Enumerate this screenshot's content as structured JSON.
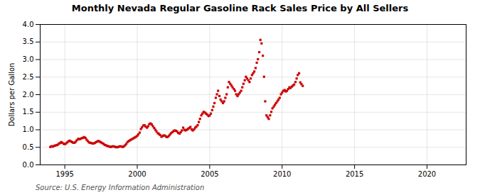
{
  "chart_data": {
    "type": "scatter",
    "title": "Monthly Nevada Regular Gasoline Rack Sales Price by All Sellers",
    "ylabel": "Dollars per Gallon",
    "annotations": [
      "Source: U.S. Energy Information Administration"
    ],
    "color": "#cc0000",
    "marker": "square",
    "grid": true,
    "xlim": [
      1993.3,
      2022.7
    ],
    "xticks": [
      1995,
      2000,
      2005,
      2010,
      2015,
      2020
    ],
    "ylim": [
      0.0,
      4.0
    ],
    "yticks": [
      {
        "value": 0.0,
        "label": "0.0"
      },
      0.5,
      {
        "value": 1.0,
        "label": "1.0"
      },
      1.5,
      {
        "value": 2.0,
        "label": "2.0"
      },
      2.5,
      {
        "value": 3.0,
        "label": "3.0"
      },
      3.5,
      {
        "value": 4.0,
        "label": "4.0"
      }
    ],
    "x": [
      1994.0,
      1994.08,
      1994.17,
      1994.25,
      1994.33,
      1994.42,
      1994.5,
      1994.58,
      1994.67,
      1994.75,
      1994.83,
      1994.92,
      1995.0,
      1995.08,
      1995.17,
      1995.25,
      1995.33,
      1995.42,
      1995.5,
      1995.58,
      1995.67,
      1995.75,
      1995.83,
      1995.92,
      1996.0,
      1996.08,
      1996.17,
      1996.25,
      1996.33,
      1996.42,
      1996.5,
      1996.58,
      1996.67,
      1996.75,
      1996.83,
      1996.92,
      1997.0,
      1997.08,
      1997.17,
      1997.25,
      1997.33,
      1997.42,
      1997.5,
      1997.58,
      1997.67,
      1997.75,
      1997.83,
      1997.92,
      1998.0,
      1998.08,
      1998.17,
      1998.25,
      1998.33,
      1998.42,
      1998.5,
      1998.58,
      1998.67,
      1998.75,
      1998.83,
      1998.92,
      1999.0,
      1999.08,
      1999.17,
      1999.25,
      1999.33,
      1999.42,
      1999.5,
      1999.58,
      1999.67,
      1999.75,
      1999.83,
      1999.92,
      2000.0,
      2000.08,
      2000.17,
      2000.25,
      2000.33,
      2000.42,
      2000.5,
      2000.58,
      2000.67,
      2000.75,
      2000.83,
      2000.92,
      2001.0,
      2001.08,
      2001.17,
      2001.25,
      2001.33,
      2001.42,
      2001.5,
      2001.58,
      2001.67,
      2001.75,
      2001.83,
      2001.92,
      2002.0,
      2002.08,
      2002.17,
      2002.25,
      2002.33,
      2002.42,
      2002.5,
      2002.58,
      2002.67,
      2002.75,
      2002.83,
      2002.92,
      2003.0,
      2003.08,
      2003.17,
      2003.25,
      2003.33,
      2003.42,
      2003.5,
      2003.58,
      2003.67,
      2003.75,
      2003.83,
      2003.92,
      2004.0,
      2004.08,
      2004.17,
      2004.25,
      2004.33,
      2004.42,
      2004.5,
      2004.58,
      2004.67,
      2004.75,
      2004.83,
      2004.92,
      2005.0,
      2005.08,
      2005.17,
      2005.25,
      2005.33,
      2005.42,
      2005.5,
      2005.58,
      2005.67,
      2005.75,
      2005.83,
      2005.92,
      2006.0,
      2006.08,
      2006.17,
      2006.25,
      2006.33,
      2006.42,
      2006.5,
      2006.58,
      2006.67,
      2006.75,
      2006.83,
      2006.92,
      2007.0,
      2007.08,
      2007.17,
      2007.25,
      2007.33,
      2007.42,
      2007.5,
      2007.58,
      2007.67,
      2007.75,
      2007.83,
      2007.92,
      2008.0,
      2008.08,
      2008.17,
      2008.25,
      2008.33,
      2008.42,
      2008.5,
      2008.58,
      2008.67,
      2008.75,
      2008.83,
      2008.92,
      2009.0,
      2009.08,
      2009.17,
      2009.25,
      2009.33,
      2009.42,
      2009.5,
      2009.58,
      2009.67,
      2009.75,
      2009.83,
      2009.92,
      2010.0,
      2010.08,
      2010.17,
      2010.25,
      2010.33,
      2010.42,
      2010.5,
      2010.58,
      2010.67,
      2010.75,
      2010.83,
      2010.92,
      2011.0,
      2011.08,
      2011.17,
      2011.25,
      2011.33,
      2011.42
    ],
    "values": [
      0.51,
      0.53,
      0.52,
      0.54,
      0.55,
      0.56,
      0.57,
      0.6,
      0.62,
      0.65,
      0.63,
      0.6,
      0.59,
      0.61,
      0.64,
      0.67,
      0.69,
      0.67,
      0.65,
      0.63,
      0.63,
      0.66,
      0.7,
      0.74,
      0.73,
      0.74,
      0.76,
      0.77,
      0.79,
      0.77,
      0.72,
      0.68,
      0.64,
      0.63,
      0.62,
      0.61,
      0.61,
      0.63,
      0.65,
      0.67,
      0.68,
      0.66,
      0.64,
      0.62,
      0.6,
      0.57,
      0.56,
      0.54,
      0.53,
      0.52,
      0.51,
      0.52,
      0.53,
      0.52,
      0.51,
      0.5,
      0.51,
      0.52,
      0.53,
      0.52,
      0.51,
      0.53,
      0.56,
      0.6,
      0.65,
      0.68,
      0.7,
      0.72,
      0.74,
      0.76,
      0.78,
      0.8,
      0.83,
      0.87,
      0.92,
      1.02,
      1.07,
      1.12,
      1.13,
      1.09,
      1.06,
      1.1,
      1.16,
      1.18,
      1.15,
      1.1,
      1.05,
      1.0,
      0.95,
      0.9,
      0.88,
      0.85,
      0.8,
      0.82,
      0.84,
      0.83,
      0.8,
      0.79,
      0.82,
      0.86,
      0.9,
      0.93,
      0.96,
      0.98,
      0.97,
      0.95,
      0.91,
      0.89,
      0.93,
      0.98,
      1.06,
      1.0,
      0.98,
      1.0,
      1.02,
      1.05,
      1.08,
      1.01,
      0.98,
      1.01,
      1.06,
      1.09,
      1.13,
      1.22,
      1.31,
      1.41,
      1.46,
      1.51,
      1.49,
      1.46,
      1.43,
      1.39,
      1.41,
      1.46,
      1.56,
      1.66,
      1.76,
      1.91,
      2.01,
      2.11,
      1.96,
      1.86,
      1.81,
      1.76,
      1.81,
      1.91,
      2.01,
      2.21,
      2.36,
      2.31,
      2.26,
      2.21,
      2.16,
      2.11,
      2.01,
      1.96,
      2.01,
      2.06,
      2.11,
      2.21,
      2.31,
      2.41,
      2.51,
      2.46,
      2.41,
      2.36,
      2.46,
      2.56,
      2.61,
      2.66,
      2.76,
      2.91,
      3.01,
      3.21,
      3.56,
      3.46,
      3.11,
      2.51,
      1.81,
      1.41,
      1.36,
      1.31,
      1.41,
      1.51,
      1.61,
      1.66,
      1.71,
      1.76,
      1.81,
      1.86,
      1.91,
      2.01,
      2.06,
      2.11,
      2.13,
      2.09,
      2.11,
      2.16,
      2.21,
      2.19,
      2.23,
      2.26,
      2.29,
      2.36,
      2.46,
      2.56,
      2.61,
      2.35,
      2.3,
      2.25
    ]
  }
}
